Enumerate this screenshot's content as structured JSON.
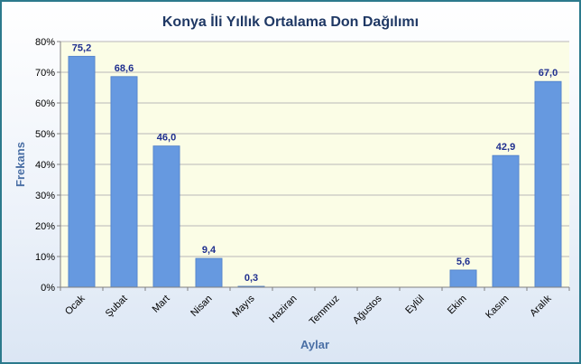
{
  "chart_data": {
    "type": "bar",
    "title": "Konya İli Yıllık Ortalama Don Dağılımı",
    "xlabel": "Aylar",
    "ylabel": "Frekans",
    "categories": [
      "Ocak",
      "Şubat",
      "Mart",
      "Nisan",
      "Mayıs",
      "Haziran",
      "Temmuz",
      "Ağustos",
      "Eylül",
      "Ekim",
      "Kasım",
      "Aralık"
    ],
    "values": [
      75.2,
      68.6,
      46.0,
      9.4,
      0.3,
      0,
      0,
      0,
      0,
      5.6,
      42.9,
      67.0
    ],
    "data_labels": [
      "75,2",
      "68,6",
      "46,0",
      "9,4",
      "0,3",
      "",
      "",
      "",
      "",
      "5,6",
      "42,9",
      "67,0"
    ],
    "ylim": [
      0,
      80
    ],
    "yticks": [
      0,
      10,
      20,
      30,
      40,
      50,
      60,
      70,
      80
    ],
    "ytick_labels": [
      "0%",
      "10%",
      "20%",
      "30%",
      "40%",
      "50%",
      "60%",
      "70%",
      "80%"
    ],
    "grid": true,
    "legend": "none",
    "colors": {
      "bar": "#6699e0",
      "bar_edge": "#4f7fc8",
      "plot_background": "#fbfde6",
      "gridline": "#b8b8b8",
      "title": "#1f3864",
      "axis_title": "#4a6fa5",
      "data_label": "#1f2f8f"
    }
  }
}
